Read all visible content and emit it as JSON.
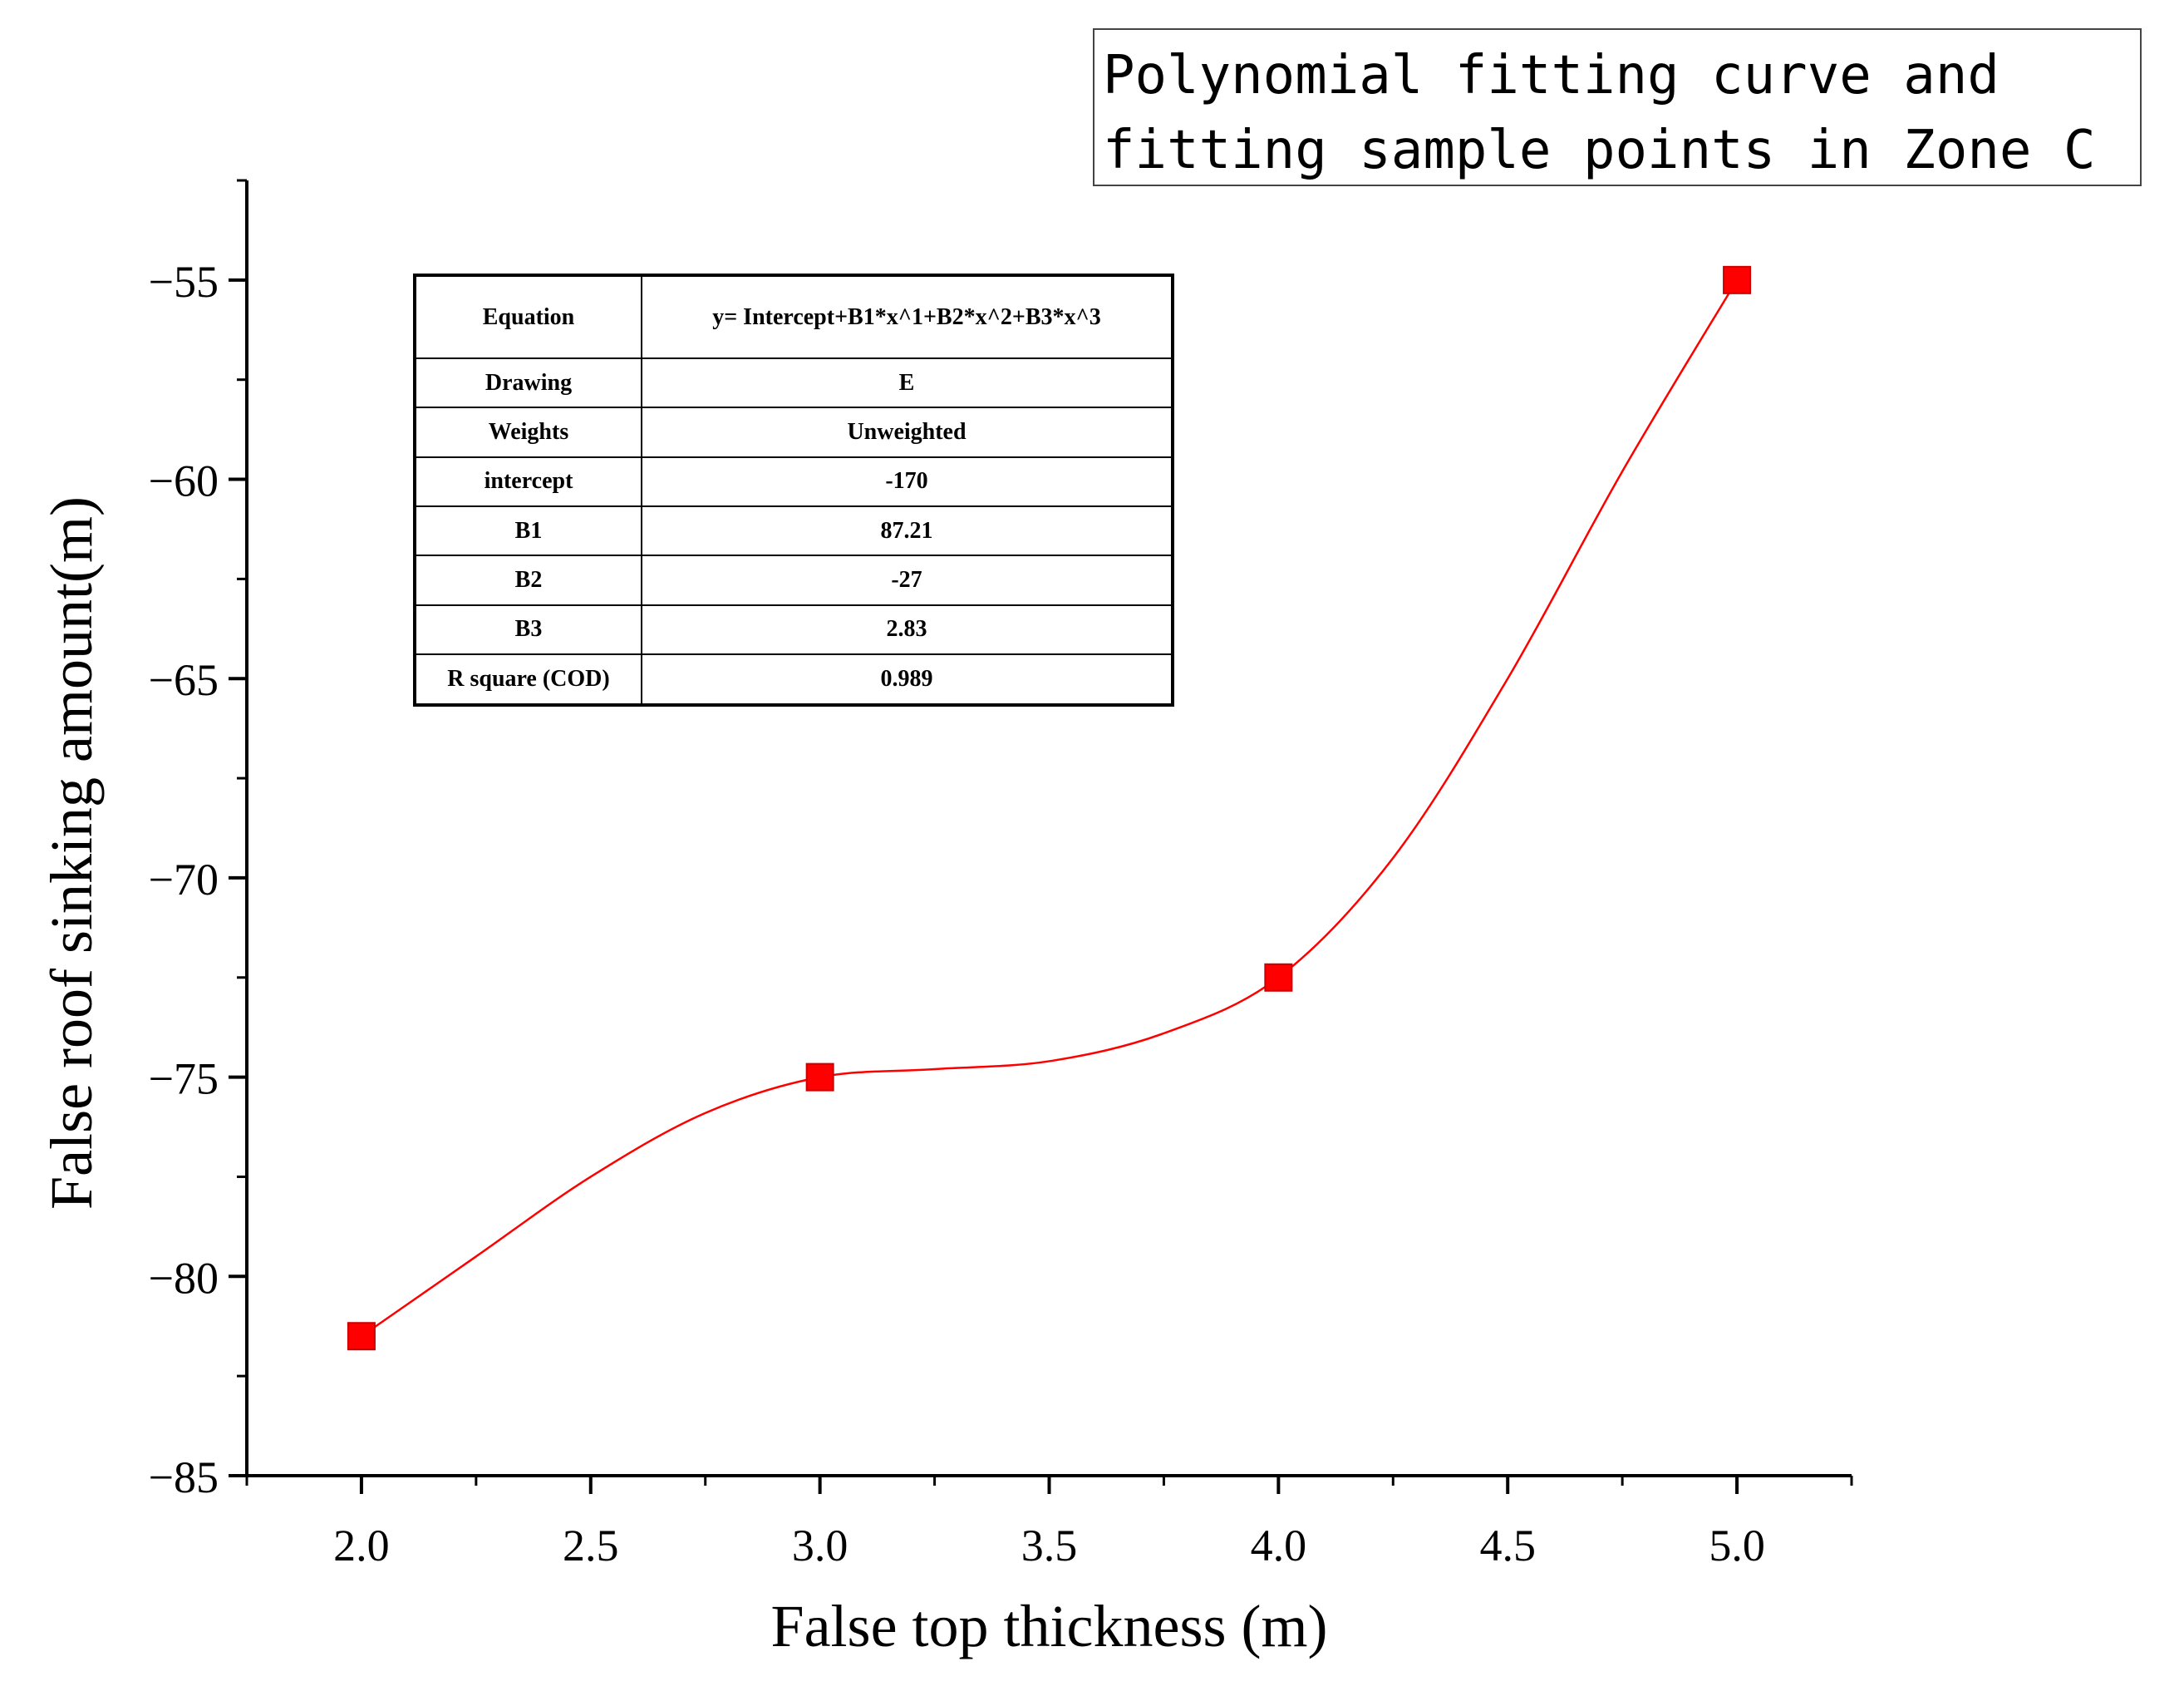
{
  "chart_data": {
    "type": "scatter",
    "title": "Polynomial fitting curve and fitting sample points in Zone C",
    "title_lines": [
      "Polynomial fitting curve and",
      "fitting sample points in Zone C"
    ],
    "xlabel": "False top thickness (m)",
    "ylabel": "False roof sinking amount(m)",
    "xlim": [
      1.75,
      5.25
    ],
    "ylim": [
      -85,
      -52.5
    ],
    "x_ticks": [
      2.0,
      2.5,
      3.0,
      3.5,
      4.0,
      4.5,
      5.0
    ],
    "x_tick_labels": [
      "2.0",
      "2.5",
      "3.0",
      "3.5",
      "4.0",
      "4.5",
      "5.0"
    ],
    "y_ticks": [
      -85,
      -80,
      -75,
      -70,
      -65,
      -60,
      -55
    ],
    "y_tick_labels": [
      "−85",
      "−80",
      "−75",
      "−70",
      "−65",
      "−60",
      "−55"
    ],
    "grid": false,
    "series": [
      {
        "kind": "points",
        "marker": "square",
        "color": "#ff0000",
        "x": [
          2.0,
          3.0,
          4.0,
          5.0
        ],
        "y": [
          -81.5,
          -75.0,
          -72.5,
          -55.0
        ]
      },
      {
        "kind": "fit-curve",
        "color": "#ff0000",
        "x": [
          2.0,
          2.25,
          2.5,
          2.75,
          3.0,
          3.25,
          3.5,
          3.75,
          4.0,
          4.25,
          4.5,
          4.75,
          5.0
        ],
        "y": [
          -81.5,
          -79.5,
          -77.5,
          -75.9,
          -75.0,
          -74.8,
          -74.6,
          -73.9,
          -72.5,
          -69.5,
          -65.0,
          -59.8,
          -55.0
        ]
      }
    ],
    "table": {
      "rows": [
        {
          "key": "Equation",
          "value": "y= Intercept+B1*x^1+B2*x^2+B3*x^3"
        },
        {
          "key": "Drawing",
          "value": "E"
        },
        {
          "key": "Weights",
          "value": "Unweighted"
        },
        {
          "key": "intercept",
          "value": "-170"
        },
        {
          "key": "B1",
          "value": "87.21"
        },
        {
          "key": "B2",
          "value": "-27"
        },
        {
          "key": "B3",
          "value": "2.83"
        },
        {
          "key": "R square (COD)",
          "value": "0.989"
        }
      ]
    }
  }
}
